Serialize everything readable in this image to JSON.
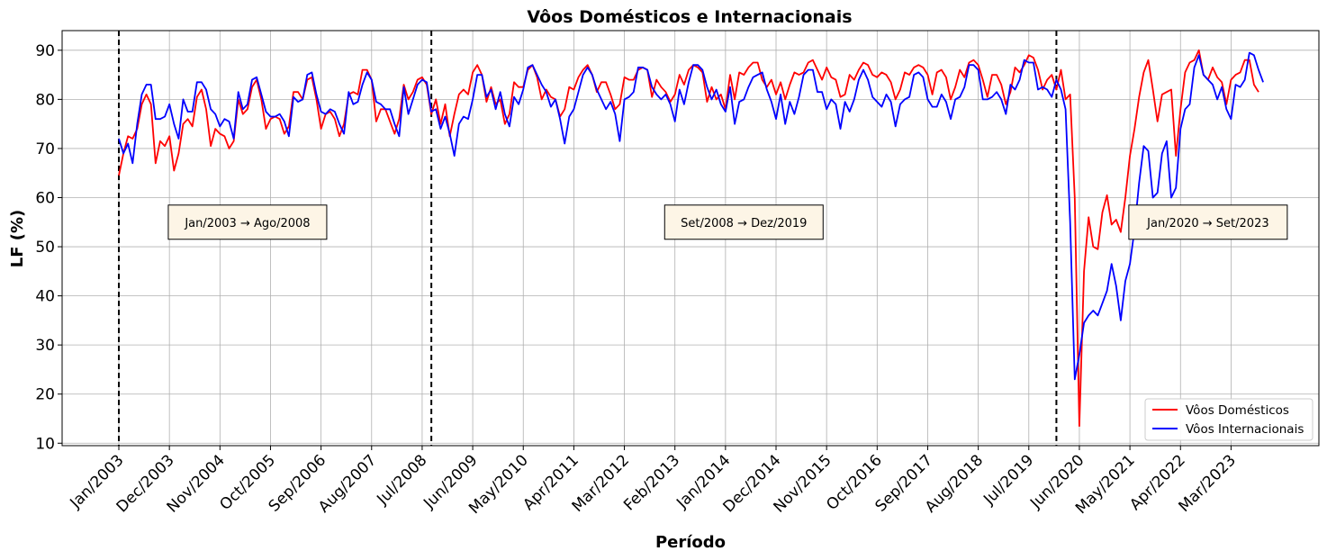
{
  "chart_data": {
    "type": "line",
    "title": "Vôos Domésticos e Internacionais",
    "xlabel": "Período",
    "ylabel": "LF (%)",
    "ylim": [
      9.5,
      94
    ],
    "yticks": [
      10,
      20,
      30,
      40,
      50,
      60,
      70,
      80,
      90
    ],
    "grid": true,
    "legend_position": "lower-right",
    "start": "Jan/2003",
    "xtick_labels": [
      "Jan/2003",
      "Dec/2003",
      "Nov/2004",
      "Oct/2005",
      "Sep/2006",
      "Aug/2007",
      "Jul/2008",
      "Jun/2009",
      "May/2010",
      "Apr/2011",
      "Mar/2012",
      "Feb/2013",
      "Jan/2014",
      "Dec/2014",
      "Nov/2015",
      "Oct/2016",
      "Sep/2017",
      "Aug/2018",
      "Jul/2019",
      "Jun/2020",
      "May/2021",
      "Apr/2022",
      "Mar/2023"
    ],
    "vlines": [
      "Jan/2003",
      "Set/2008",
      "Jan/2020"
    ],
    "annotations": [
      {
        "text": "Jan/2003 → Ago/2008",
        "x": "Mai/2005",
        "y": 55
      },
      {
        "text": "Set/2008 → Dez/2019",
        "x": "Mai/2014",
        "y": 55
      },
      {
        "text": "Jan/2020 → Set/2023",
        "x": "Out/2022",
        "y": 55
      }
    ],
    "series": [
      {
        "name": "Vôos Domésticos",
        "color": "#ff0000",
        "values": [
          64.5,
          69.0,
          72.5,
          72.0,
          74.0,
          79.0,
          81.0,
          79.0,
          67.0,
          71.5,
          70.5,
          72.5,
          65.5,
          69.0,
          75.0,
          76.0,
          74.5,
          80.5,
          82.0,
          78.0,
          70.5,
          74.0,
          73.0,
          72.5,
          70.0,
          71.5,
          80.0,
          77.0,
          78.0,
          82.5,
          84.0,
          80.0,
          74.0,
          76.0,
          76.5,
          76.0,
          73.0,
          74.5,
          81.5,
          81.5,
          80.0,
          84.0,
          84.5,
          80.0,
          74.0,
          77.0,
          77.5,
          76.0,
          72.5,
          75.0,
          81.0,
          81.5,
          81.0,
          86.0,
          86.0,
          84.0,
          75.5,
          78.0,
          78.0,
          75.5,
          73.0,
          76.0,
          83.0,
          80.0,
          81.5,
          84.0,
          84.5,
          83.0,
          77.0,
          80.0,
          75.0,
          79.0,
          72.5,
          77.0,
          81.0,
          82.0,
          81.0,
          85.5,
          87.0,
          85.0,
          79.5,
          82.5,
          79.0,
          80.0,
          75.0,
          77.0,
          83.5,
          82.5,
          82.5,
          86.0,
          87.0,
          84.5,
          80.0,
          82.0,
          80.5,
          80.0,
          76.5,
          78.0,
          82.5,
          82.0,
          84.5,
          86.0,
          87.0,
          85.0,
          81.5,
          83.5,
          83.5,
          81.0,
          78.0,
          79.0,
          84.5,
          84.0,
          84.0,
          86.0,
          86.5,
          86.0,
          80.5,
          84.0,
          82.5,
          81.5,
          79.5,
          81.0,
          85.0,
          83.0,
          86.0,
          87.0,
          86.5,
          85.5,
          79.5,
          82.5,
          80.0,
          81.0,
          78.0,
          85.0,
          80.0,
          85.5,
          85.0,
          86.5,
          87.5,
          87.5,
          84.0,
          82.5,
          84.0,
          81.0,
          83.5,
          80.0,
          83.0,
          85.5,
          85.0,
          85.5,
          87.5,
          88.0,
          86.0,
          84.0,
          86.5,
          84.5,
          84.0,
          80.5,
          81.0,
          85.0,
          84.0,
          86.0,
          87.5,
          87.0,
          85.0,
          84.5,
          85.5,
          85.0,
          83.5,
          80.0,
          82.0,
          85.5,
          85.0,
          86.5,
          87.0,
          86.5,
          85.0,
          81.0,
          85.5,
          86.0,
          84.5,
          80.0,
          82.5,
          86.0,
          84.5,
          87.5,
          88.0,
          87.0,
          84.0,
          80.5,
          85.0,
          85.0,
          83.0,
          79.0,
          81.5,
          86.5,
          85.5,
          87.0,
          89.0,
          88.5,
          86.0,
          82.0,
          84.0,
          85.0,
          82.0,
          86.0,
          80.0,
          81.0,
          60.0,
          13.5,
          45.0,
          56.0,
          50.0,
          49.5,
          57.0,
          60.5,
          54.5,
          55.5,
          53.0,
          60.0,
          68.5,
          74.0,
          80.5,
          85.5,
          88.0,
          82.0,
          75.5,
          81.0,
          81.5,
          82.0,
          68.5,
          78.0,
          85.5,
          87.5,
          88.0,
          90.0,
          85.0,
          84.0,
          86.5,
          84.5,
          83.5,
          79.0,
          84.0,
          85.0,
          85.5,
          88.0,
          88.0,
          83.0,
          81.5
        ]
      },
      {
        "name": "Vôos Internacionais",
        "color": "#0000ff",
        "values": [
          72.0,
          69.0,
          71.0,
          67.0,
          75.0,
          81.0,
          83.0,
          83.0,
          76.0,
          76.0,
          76.5,
          79.0,
          75.0,
          72.0,
          80.0,
          77.5,
          77.5,
          83.5,
          83.5,
          82.0,
          78.0,
          77.0,
          74.5,
          76.0,
          75.5,
          72.0,
          81.5,
          78.0,
          79.0,
          84.0,
          84.5,
          81.0,
          77.5,
          76.5,
          76.5,
          77.0,
          75.5,
          72.5,
          80.5,
          79.5,
          80.0,
          85.0,
          85.5,
          81.0,
          77.5,
          77.0,
          78.0,
          77.5,
          75.0,
          73.0,
          81.5,
          79.0,
          79.5,
          83.0,
          85.5,
          84.0,
          79.5,
          79.0,
          78.0,
          78.0,
          75.0,
          72.5,
          82.5,
          77.0,
          80.0,
          83.0,
          84.0,
          83.5,
          77.5,
          78.0,
          74.0,
          76.5,
          73.0,
          68.5,
          75.0,
          76.5,
          76.0,
          80.0,
          85.0,
          85.0,
          80.5,
          82.0,
          78.0,
          81.5,
          77.0,
          74.5,
          80.5,
          79.0,
          82.0,
          86.5,
          87.0,
          85.0,
          83.0,
          81.5,
          78.5,
          80.0,
          76.0,
          71.0,
          76.5,
          78.0,
          81.5,
          85.0,
          86.5,
          85.0,
          82.0,
          80.0,
          78.0,
          79.5,
          77.0,
          71.5,
          80.0,
          80.5,
          81.5,
          86.5,
          86.5,
          86.0,
          82.5,
          81.0,
          80.0,
          81.0,
          79.0,
          75.5,
          82.0,
          79.0,
          83.5,
          87.0,
          87.0,
          86.0,
          82.5,
          80.0,
          82.0,
          79.0,
          77.5,
          82.5,
          75.0,
          79.5,
          80.0,
          82.5,
          84.5,
          85.0,
          85.5,
          82.0,
          79.5,
          76.0,
          81.0,
          75.0,
          79.5,
          77.0,
          80.5,
          85.0,
          86.0,
          86.0,
          81.5,
          81.5,
          78.0,
          80.0,
          79.0,
          74.0,
          79.5,
          77.5,
          80.0,
          84.0,
          86.0,
          84.0,
          80.5,
          79.5,
          78.5,
          81.0,
          79.5,
          74.5,
          79.0,
          80.0,
          80.5,
          85.0,
          85.5,
          84.5,
          80.0,
          78.5,
          78.5,
          81.0,
          79.5,
          76.0,
          80.0,
          80.5,
          82.5,
          87.0,
          87.0,
          86.0,
          80.0,
          80.0,
          80.5,
          81.5,
          80.0,
          77.0,
          83.0,
          82.0,
          84.0,
          88.0,
          87.5,
          87.5,
          82.0,
          82.5,
          82.0,
          80.5,
          84.0,
          82.0,
          78.0,
          55.0,
          23.0,
          28.0,
          34.5,
          36.0,
          37.0,
          36.0,
          38.5,
          41.0,
          46.5,
          42.0,
          35.0,
          43.0,
          46.5,
          53.5,
          63.0,
          70.5,
          69.5,
          60.0,
          61.0,
          69.0,
          71.5,
          60.0,
          62.0,
          74.0,
          78.0,
          79.0,
          86.5,
          89.0,
          85.0,
          84.0,
          83.0,
          80.0,
          82.5,
          78.0,
          76.0,
          83.0,
          82.5,
          84.0,
          89.5,
          89.0,
          86.0,
          83.5
        ]
      }
    ]
  }
}
